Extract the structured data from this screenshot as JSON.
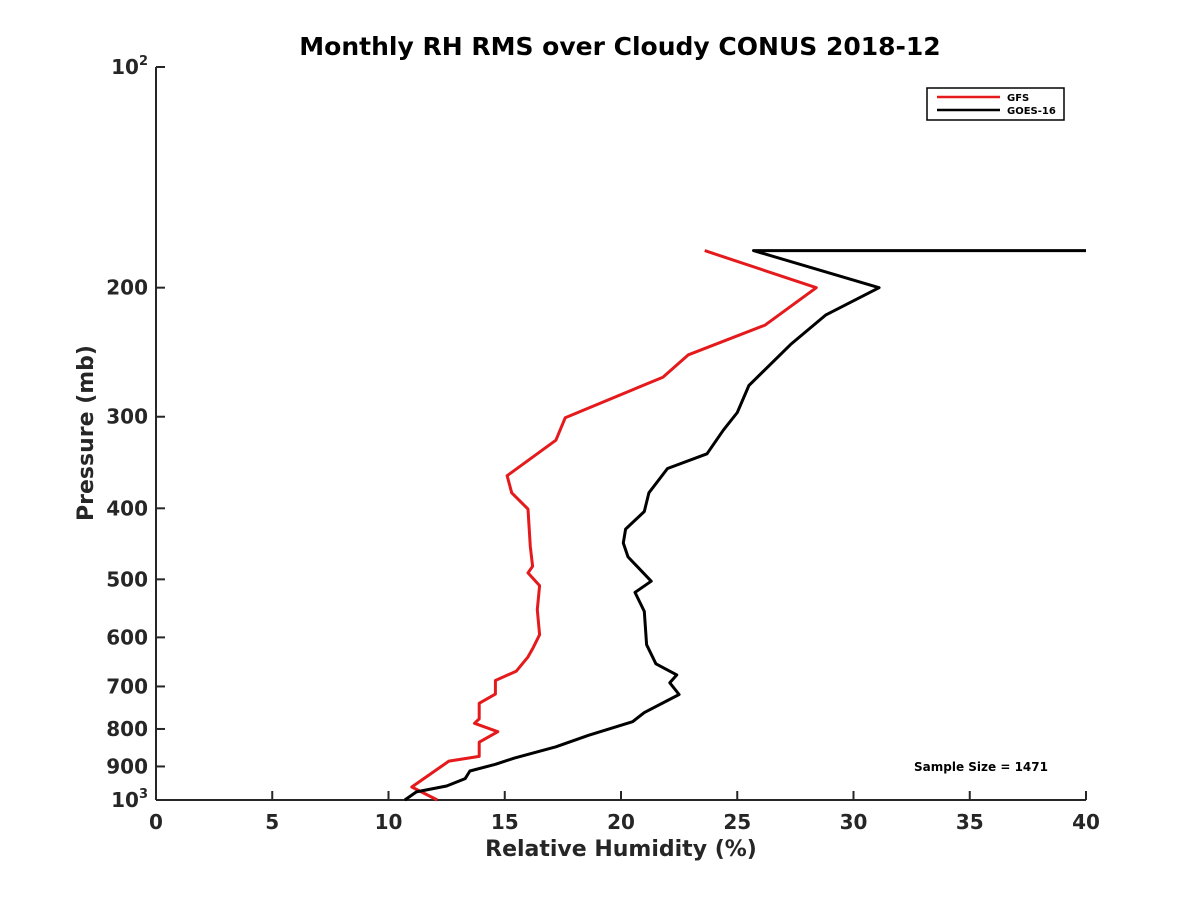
{
  "chart_data": {
    "type": "line",
    "title": "Monthly RH RMS over Cloudy CONUS  2018-12",
    "xlabel": "Relative Humidity (%)",
    "ylabel": "Pressure (mb)",
    "xlim": [
      0,
      40
    ],
    "ylim": [
      100,
      1000
    ],
    "yscale": "log",
    "y_reversed": true,
    "xticks": [
      0,
      5,
      10,
      15,
      20,
      25,
      30,
      35,
      40
    ],
    "yticks": [
      {
        "value": 100,
        "label": "10",
        "sup": "2"
      },
      {
        "value": 200,
        "label": "200"
      },
      {
        "value": 300,
        "label": "300"
      },
      {
        "value": 400,
        "label": "400"
      },
      {
        "value": 500,
        "label": "500"
      },
      {
        "value": 600,
        "label": "600"
      },
      {
        "value": 700,
        "label": "700"
      },
      {
        "value": 800,
        "label": "800"
      },
      {
        "value": 900,
        "label": "900"
      },
      {
        "value": 1000,
        "label": "10",
        "sup": "3"
      }
    ],
    "legend_position": "top-right",
    "annotation": "Sample Size = 1471",
    "series": [
      {
        "name": "GFS",
        "color": "#e41a1c",
        "points": [
          [
            23.6,
            178
          ],
          [
            28.4,
            200
          ],
          [
            26.2,
            225
          ],
          [
            22.9,
            247
          ],
          [
            21.8,
            265
          ],
          [
            17.6,
            301
          ],
          [
            17.2,
            323
          ],
          [
            15.1,
            361
          ],
          [
            15.3,
            381
          ],
          [
            16.0,
            401
          ],
          [
            16.1,
            451
          ],
          [
            16.2,
            480
          ],
          [
            16.0,
            490
          ],
          [
            16.5,
            510
          ],
          [
            16.4,
            550
          ],
          [
            16.5,
            595
          ],
          [
            16.2,
            622
          ],
          [
            16.0,
            638
          ],
          [
            15.5,
            667
          ],
          [
            14.6,
            687
          ],
          [
            14.6,
            717
          ],
          [
            13.9,
            738
          ],
          [
            13.9,
            775
          ],
          [
            13.7,
            786
          ],
          [
            14.7,
            807
          ],
          [
            13.9,
            834
          ],
          [
            13.9,
            872
          ],
          [
            12.6,
            885
          ],
          [
            11.0,
            960
          ],
          [
            12.1,
            1000
          ]
        ]
      },
      {
        "name": "GOES-16",
        "color": "#000000",
        "points": [
          [
            40.0,
            178
          ],
          [
            25.7,
            178
          ],
          [
            31.1,
            200
          ],
          [
            28.8,
            218
          ],
          [
            27.3,
            239
          ],
          [
            25.5,
            272
          ],
          [
            25.0,
            296
          ],
          [
            24.4,
            313
          ],
          [
            23.7,
            337
          ],
          [
            22.0,
            353
          ],
          [
            21.2,
            381
          ],
          [
            21.0,
            404
          ],
          [
            20.2,
            427
          ],
          [
            20.1,
            446
          ],
          [
            20.3,
            466
          ],
          [
            21.3,
            503
          ],
          [
            20.6,
            521
          ],
          [
            21.0,
            553
          ],
          [
            21.1,
            614
          ],
          [
            21.5,
            652
          ],
          [
            22.4,
            675
          ],
          [
            22.1,
            692
          ],
          [
            22.5,
            718
          ],
          [
            21.0,
            760
          ],
          [
            20.5,
            782
          ],
          [
            18.6,
            816
          ],
          [
            17.2,
            846
          ],
          [
            15.4,
            877
          ],
          [
            14.6,
            894
          ],
          [
            13.5,
            913
          ],
          [
            13.3,
            935
          ],
          [
            12.5,
            957
          ],
          [
            11.2,
            975
          ],
          [
            10.7,
            1000
          ]
        ]
      }
    ]
  }
}
